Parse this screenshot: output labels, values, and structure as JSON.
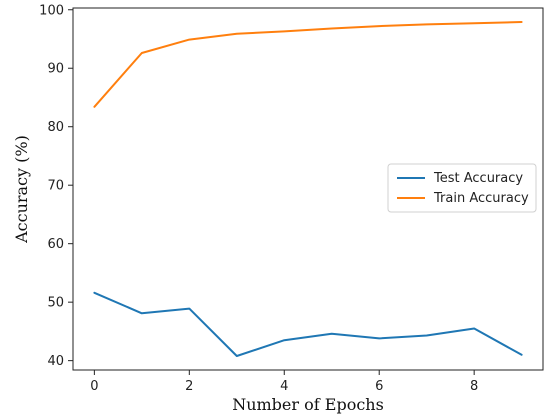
{
  "chart_data": {
    "type": "line",
    "title": "",
    "xlabel": "Number of Epochs",
    "ylabel": "Accuracy (%)",
    "x": [
      0,
      1,
      2,
      3,
      4,
      5,
      6,
      7,
      8,
      9
    ],
    "xlim": [
      -0.45,
      9.45
    ],
    "ylim": [
      38.4,
      100.3
    ],
    "xticks": [
      0,
      2,
      4,
      6,
      8
    ],
    "yticks": [
      40,
      50,
      60,
      70,
      80,
      90,
      100
    ],
    "grid": false,
    "legend_position": "center-right",
    "series": [
      {
        "name": "Test Accuracy",
        "color": "#1f77b4",
        "values": [
          51.6,
          48.1,
          48.9,
          40.8,
          43.5,
          44.6,
          43.8,
          44.3,
          45.5,
          41.0
        ]
      },
      {
        "name": "Train Accuracy",
        "color": "#ff7f0e",
        "values": [
          83.4,
          92.6,
          94.9,
          95.9,
          96.3,
          96.8,
          97.2,
          97.5,
          97.7,
          97.9
        ]
      }
    ]
  }
}
